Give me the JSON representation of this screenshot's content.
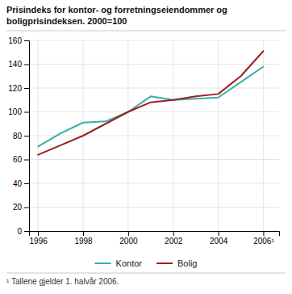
{
  "chart_data": {
    "type": "line",
    "title": "Prisindeks for kontor- og forretningseiendommer og boligprisindeksen. 2000=100",
    "annotations": [
      "¹ Tallene gjelder 1. halvår 2006."
    ],
    "x": [
      1996,
      1997,
      1998,
      1999,
      2000,
      2001,
      2002,
      2003,
      2004,
      2005,
      2006
    ],
    "series": [
      {
        "name": "Kontor",
        "color": "#3aada8",
        "values": [
          71,
          82,
          91,
          92,
          100,
          113,
          110,
          111,
          112,
          125,
          138
        ]
      },
      {
        "name": "Bolig",
        "color": "#9b2020",
        "values": [
          64,
          72,
          80,
          90,
          100,
          108,
          110,
          113,
          115,
          130,
          151
        ]
      }
    ],
    "xlim": [
      1995.6,
      2006.7
    ],
    "xticks": [
      1996,
      1998,
      2000,
      2002,
      2004,
      {
        "value": 2006,
        "label": "2006¹"
      }
    ],
    "ylim": [
      0,
      160
    ],
    "yticks": [
      0,
      20,
      40,
      60,
      80,
      100,
      120,
      140,
      160
    ],
    "grid": true,
    "legend": "bottom"
  }
}
